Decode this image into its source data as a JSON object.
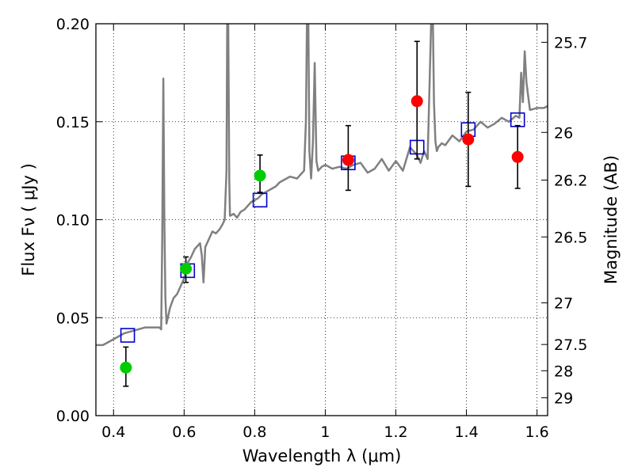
{
  "chart_data": {
    "type": "scatter",
    "title": "",
    "xlabel": "Wavelength  λ (μm)",
    "ylabel": "Flux  Fν  ( μJy )",
    "y2label": "Magnitude (AB)",
    "xlim": [
      0.35,
      1.63
    ],
    "ylim": [
      0.0,
      0.2
    ],
    "grid": true,
    "x_ticks": [
      {
        "value": 0.4,
        "label": "0.4"
      },
      {
        "value": 0.6,
        "label": "0.6"
      },
      {
        "value": 0.8,
        "label": "0.8"
      },
      {
        "value": 1.0,
        "label": "1"
      },
      {
        "value": 1.2,
        "label": "1.2"
      },
      {
        "value": 1.4,
        "label": "1.4"
      },
      {
        "value": 1.6,
        "label": "1.6"
      }
    ],
    "y_ticks": [
      {
        "value": 0.0,
        "label": "0.00"
      },
      {
        "value": 0.05,
        "label": "0.05"
      },
      {
        "value": 0.1,
        "label": "0.10"
      },
      {
        "value": 0.15,
        "label": "0.15"
      },
      {
        "value": 0.2,
        "label": "0.20"
      }
    ],
    "y2_ticks": [
      {
        "label": "25.7",
        "mag": 25.7
      },
      {
        "label": "26",
        "mag": 26.0
      },
      {
        "label": "26.2",
        "mag": 26.2
      },
      {
        "label": "26.5",
        "mag": 26.5
      },
      {
        "label": "27",
        "mag": 27.0
      },
      {
        "label": "27.5",
        "mag": 27.5
      },
      {
        "label": "28",
        "mag": 28.0
      },
      {
        "label": "29",
        "mag": 29.0
      }
    ],
    "series": [
      {
        "kind": "line",
        "color": "#808080",
        "x": [
          0.35,
          0.37,
          0.39,
          0.41,
          0.43,
          0.45,
          0.47,
          0.49,
          0.51,
          0.53,
          0.535,
          0.538,
          0.541,
          0.544,
          0.547,
          0.55,
          0.56,
          0.57,
          0.58,
          0.59,
          0.6,
          0.61,
          0.62,
          0.63,
          0.645,
          0.65,
          0.655,
          0.66,
          0.67,
          0.68,
          0.69,
          0.7,
          0.71,
          0.715,
          0.72,
          0.722,
          0.725,
          0.728,
          0.73,
          0.74,
          0.75,
          0.76,
          0.77,
          0.78,
          0.79,
          0.8,
          0.81,
          0.82,
          0.83,
          0.84,
          0.85,
          0.86,
          0.87,
          0.88,
          0.9,
          0.92,
          0.94,
          0.945,
          0.948,
          0.952,
          0.955,
          0.96,
          0.965,
          0.97,
          0.975,
          0.98,
          0.99,
          1.0,
          1.02,
          1.04,
          1.06,
          1.08,
          1.1,
          1.12,
          1.14,
          1.16,
          1.18,
          1.2,
          1.22,
          1.24,
          1.26,
          1.27,
          1.28,
          1.29,
          1.3,
          1.305,
          1.308,
          1.312,
          1.316,
          1.32,
          1.33,
          1.34,
          1.36,
          1.38,
          1.4,
          1.42,
          1.44,
          1.46,
          1.48,
          1.5,
          1.52,
          1.54,
          1.55,
          1.555,
          1.56,
          1.565,
          1.57,
          1.58,
          1.6,
          1.62,
          1.63
        ],
        "y": [
          0.036,
          0.036,
          0.038,
          0.04,
          0.042,
          0.043,
          0.044,
          0.045,
          0.045,
          0.045,
          0.044,
          0.09,
          0.172,
          0.1,
          0.06,
          0.047,
          0.055,
          0.06,
          0.062,
          0.066,
          0.07,
          0.078,
          0.081,
          0.085,
          0.088,
          0.082,
          0.068,
          0.086,
          0.09,
          0.094,
          0.093,
          0.095,
          0.098,
          0.1,
          0.125,
          0.2,
          0.2,
          0.12,
          0.102,
          0.103,
          0.101,
          0.104,
          0.105,
          0.107,
          0.109,
          0.11,
          0.111,
          0.113,
          0.114,
          0.115,
          0.116,
          0.117,
          0.119,
          0.12,
          0.122,
          0.121,
          0.125,
          0.15,
          0.2,
          0.2,
          0.135,
          0.121,
          0.14,
          0.18,
          0.13,
          0.125,
          0.127,
          0.128,
          0.126,
          0.127,
          0.126,
          0.128,
          0.129,
          0.124,
          0.126,
          0.131,
          0.125,
          0.13,
          0.125,
          0.137,
          0.133,
          0.129,
          0.135,
          0.131,
          0.2,
          0.2,
          0.16,
          0.14,
          0.135,
          0.137,
          0.139,
          0.138,
          0.143,
          0.14,
          0.145,
          0.146,
          0.15,
          0.147,
          0.149,
          0.152,
          0.15,
          0.153,
          0.152,
          0.175,
          0.16,
          0.186,
          0.17,
          0.156,
          0.157,
          0.157,
          0.158
        ]
      },
      {
        "kind": "square",
        "color": "#0000cc",
        "x": [
          0.44,
          0.61,
          0.815,
          1.065,
          1.26,
          1.405,
          1.545
        ],
        "y": [
          0.041,
          0.074,
          0.11,
          0.129,
          0.137,
          0.146,
          0.151
        ]
      },
      {
        "kind": "point",
        "color": "#00cc00",
        "x": [
          0.435,
          0.605,
          0.815
        ],
        "y": [
          0.0245,
          0.075,
          0.1225
        ],
        "err": [
          [
            0.015,
            0.035
          ],
          [
            0.068,
            0.081
          ],
          [
            0.114,
            0.133
          ]
        ]
      },
      {
        "kind": "point",
        "color": "#ff0000",
        "x": [
          1.065,
          1.26,
          1.405,
          1.545
        ],
        "y": [
          0.1305,
          0.1605,
          0.141,
          0.132
        ],
        "err": [
          [
            0.115,
            0.148
          ],
          [
            0.131,
            0.191
          ],
          [
            0.117,
            0.165
          ],
          [
            0.116,
            0.148
          ]
        ]
      }
    ]
  }
}
